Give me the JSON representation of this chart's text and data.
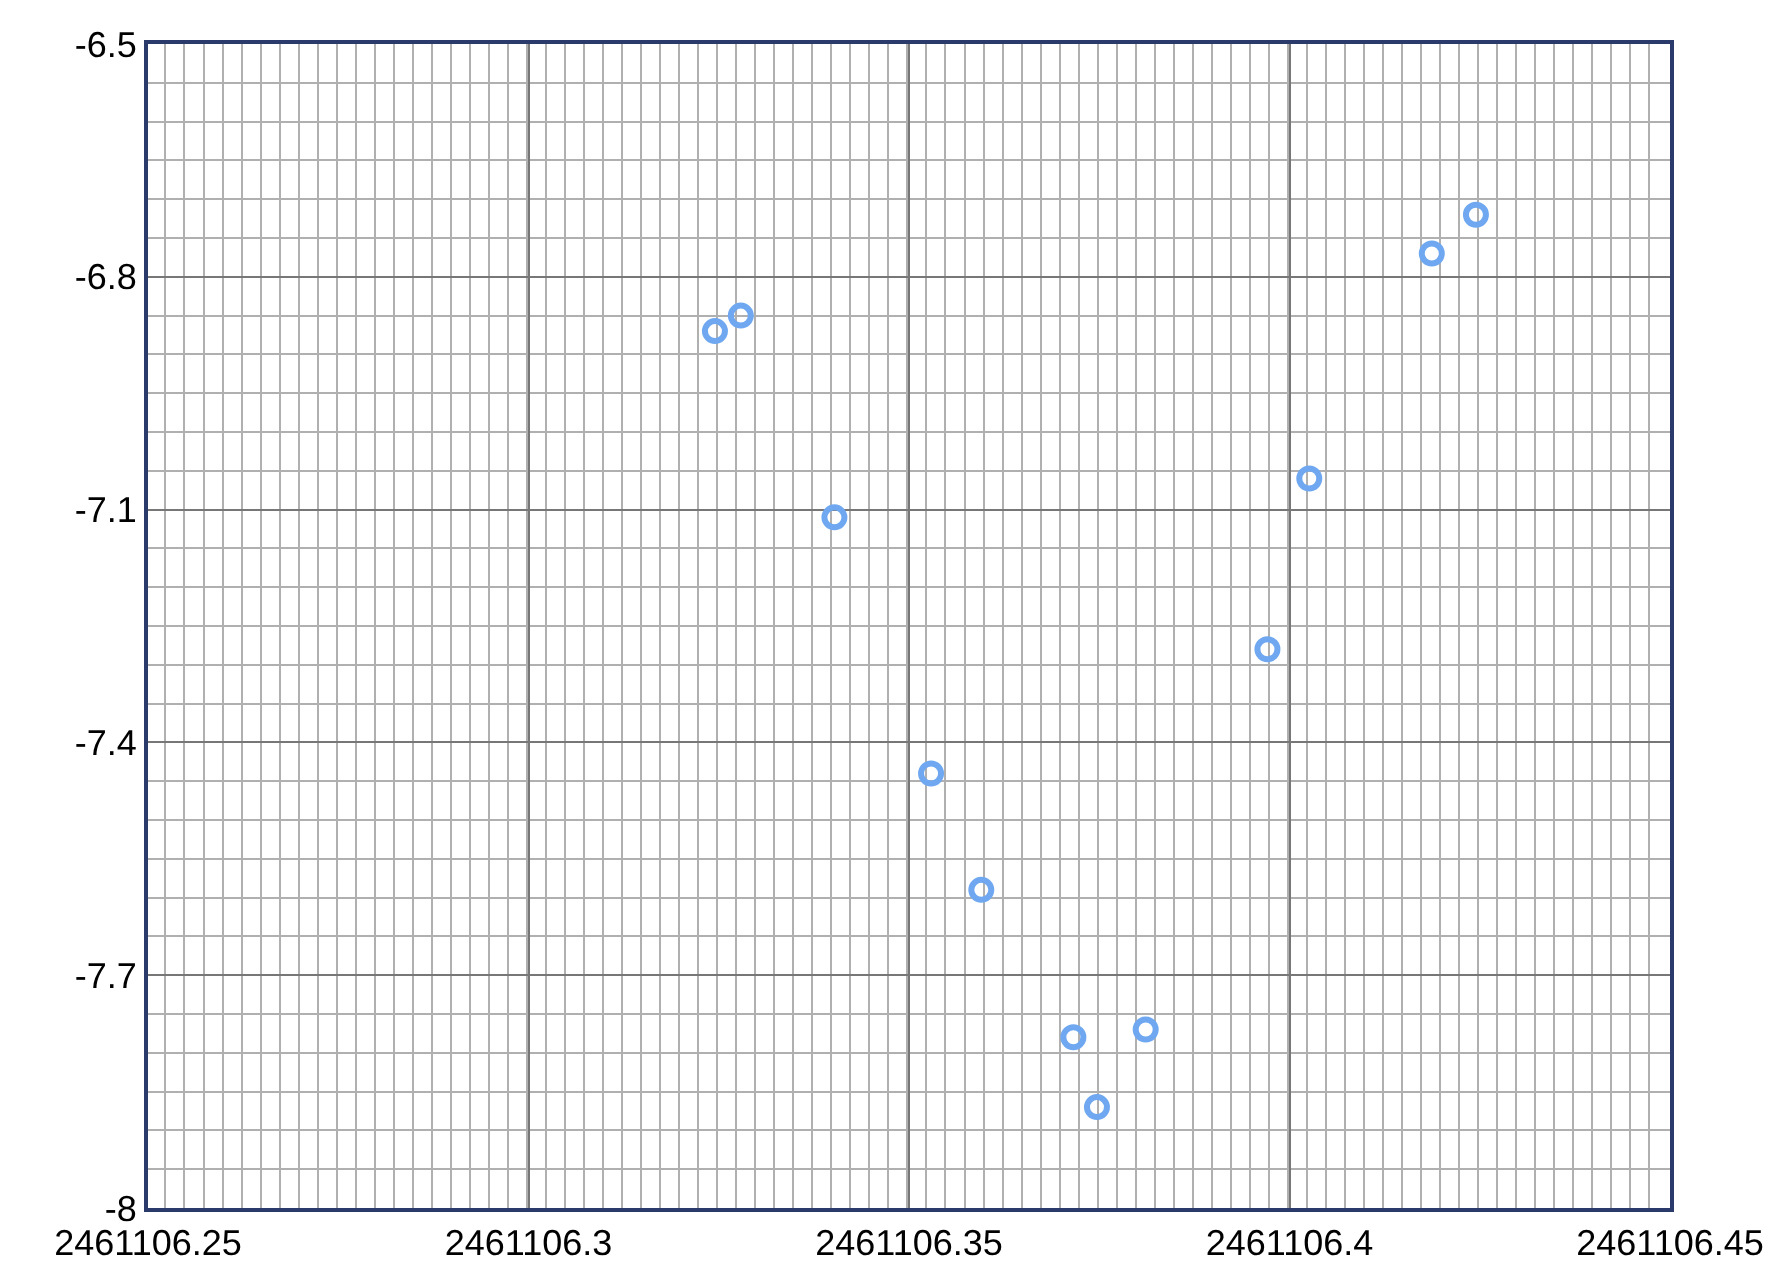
{
  "chart_data": {
    "type": "scatter",
    "marker": "circle",
    "grid": true,
    "x": [
      2461106.3245,
      2461106.3279,
      2461106.3402,
      2461106.3529,
      2461106.3595,
      2461106.3716,
      2461106.3747,
      2461106.3811,
      2461106.3971,
      2461106.4026,
      2461106.4187,
      2461106.4245
    ],
    "series": [
      {
        "color": "#6fa8f0",
        "values": [
          -6.87,
          -6.85,
          -7.11,
          -7.44,
          -7.59,
          -7.78,
          -7.87,
          -7.77,
          -7.28,
          -7.06,
          -6.77,
          -6.72
        ]
      }
    ],
    "xlim": [
      2461106.25,
      2461106.45
    ],
    "xticks": [
      2461106.25,
      2461106.3,
      2461106.35,
      2461106.4,
      2461106.45
    ],
    "ylim": [
      -8,
      -6.5
    ],
    "yticks": [
      -8,
      -7.7,
      -7.4,
      -7.1,
      -6.8,
      -6.5
    ]
  }
}
